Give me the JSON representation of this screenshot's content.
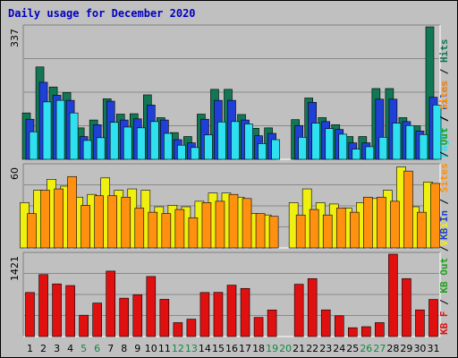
{
  "colors": {
    "title": "#0000c0",
    "panel_bg": "#c0c0c0",
    "hits": "#117755",
    "files": "#1f3fd6",
    "pages": "#2fe0f0",
    "visits": "#f0f010",
    "sites": "#ff9010",
    "kbin": "#1f3fd6",
    "kbout": "#22a022",
    "kbf": "#e01010",
    "weekday": "#000000",
    "weekend": "#118844"
  },
  "chart_data": {
    "type": "bar",
    "title": "Daily usage for December 2020",
    "categories": [
      "1",
      "2",
      "3",
      "4",
      "5",
      "6",
      "7",
      "8",
      "9",
      "10",
      "11",
      "12",
      "13",
      "14",
      "15",
      "16",
      "17",
      "18",
      "19",
      "20",
      "21",
      "22",
      "23",
      "24",
      "25",
      "26",
      "27",
      "28",
      "29",
      "30",
      "31"
    ],
    "weekend_days": [
      "5",
      "6",
      "12",
      "13",
      "19",
      "20",
      "26",
      "27"
    ],
    "panels": [
      {
        "max_label": "337",
        "ylim": [
          0,
          337
        ],
        "legend": [
          "Pages",
          "Files",
          "Hits"
        ],
        "series": [
          {
            "name": "Hits",
            "values": [
              118,
              235,
              184,
              170,
              80,
              100,
              154,
              115,
              116,
              164,
              106,
              68,
              58,
              115,
              178,
              178,
              114,
              79,
              80,
              0,
              101,
              156,
              106,
              88,
              58,
              58,
              180,
              180,
              106,
              85,
              337
            ]
          },
          {
            "name": "Files",
            "values": [
              102,
              196,
              163,
              150,
              58,
              88,
              148,
              100,
              103,
              138,
              100,
              50,
              42,
              102,
              150,
              150,
              100,
              60,
              66,
              0,
              86,
              145,
              96,
              76,
              42,
              42,
              153,
              153,
              96,
              72,
              158
            ]
          },
          {
            "name": "Pages",
            "values": [
              70,
              146,
              150,
              118,
              48,
              55,
              94,
              82,
              80,
              96,
              66,
              36,
              30,
              62,
              95,
              96,
              90,
              40,
              50,
              0,
              56,
              92,
              78,
              64,
              26,
              32,
              56,
              92,
              86,
              63,
              138
            ]
          }
        ]
      },
      {
        "max_label": "60",
        "ylim": [
          0,
          60
        ],
        "legend": [
          "Visits",
          "Sites",
          "Out",
          "Sites"
        ],
        "series": [
          {
            "name": "Visits",
            "values": [
              33,
              42,
              50,
              45,
              37,
              39,
              51,
              42,
              43,
              42,
              30,
              31,
              30,
              34,
              40,
              40,
              37,
              25,
              24,
              0,
              33,
              43,
              33,
              32,
              29,
              33,
              36,
              42,
              59,
              30,
              48
            ]
          },
          {
            "name": "Sites",
            "values": [
              25,
              42,
              43,
              52,
              31,
              38,
              38,
              37,
              29,
              26,
              25,
              28,
              22,
              33,
              34,
              39,
              36,
              25,
              23,
              0,
              24,
              28,
              24,
              29,
              26,
              37,
              37,
              34,
              56,
              26,
              47
            ]
          }
        ]
      },
      {
        "max_label": "1421",
        "ylim": [
          0,
          1421
        ],
        "legend": [
          "KB F",
          "KB Out",
          "KB In"
        ],
        "series": [
          {
            "name": "KB F",
            "values": [
              760,
              1069,
              908,
              880,
              368,
              578,
              1129,
              662,
              722,
              1036,
              642,
              240,
              300,
              760,
              762,
              887,
              830,
              330,
              458,
              0,
              902,
              1000,
              460,
              358,
              152,
              170,
              240,
              1421,
              1000,
              460,
              640
            ]
          }
        ]
      }
    ]
  }
}
